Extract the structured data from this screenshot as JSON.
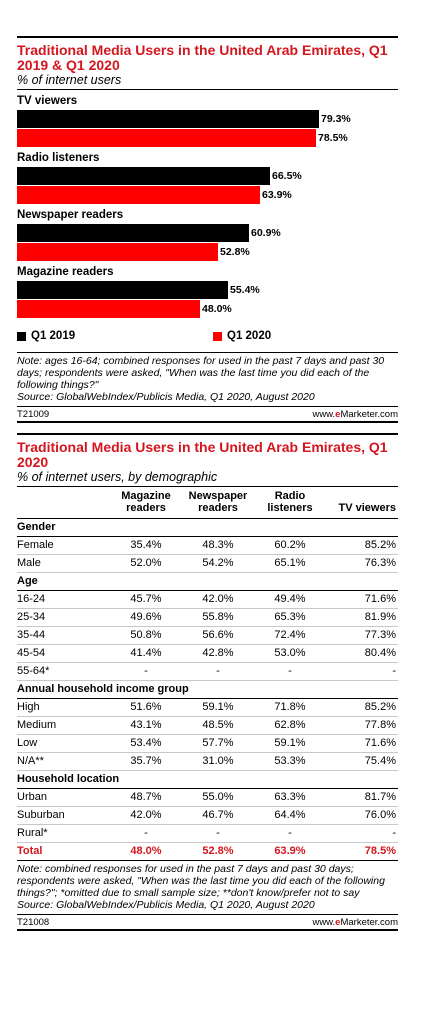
{
  "chart_data": [
    {
      "type": "bar",
      "orientation": "horizontal",
      "title": "Traditional Media Users in the United Arab Emirates, Q1 2019 & Q1 2020",
      "subtitle": "% of internet users",
      "categories": [
        "TV viewers",
        "Radio listeners",
        "Newspaper readers",
        "Magazine readers"
      ],
      "series": [
        {
          "name": "Q1 2019",
          "color": "#000000",
          "values": [
            79.3,
            66.5,
            60.9,
            55.4
          ],
          "labels": [
            "79.3%",
            "66.5%",
            "60.9%",
            "55.4%"
          ]
        },
        {
          "name": "Q1 2020",
          "color": "#ff0000",
          "values": [
            78.5,
            63.9,
            52.8,
            48.0
          ],
          "labels": [
            "78.5%",
            "63.9%",
            "52.8%",
            "48.0%"
          ]
        }
      ],
      "xlim": [
        0,
        100
      ],
      "legend": "bottom",
      "note": "Note: ages 16-64; combined responses for used in the past 7 days and past 30 days; respondents were asked, \"When was the last time you did each of the following things?\"",
      "source": "Source: GlobalWebIndex/Publicis Media, Q1 2020, August 2020",
      "code": "T21009"
    },
    {
      "type": "table",
      "title": "Traditional Media Users in the United Arab Emirates, Q1 2020",
      "subtitle": "% of internet users, by demographic",
      "columns": [
        "Magazine readers",
        "Newspaper readers",
        "Radio listeners",
        "TV viewers"
      ],
      "sections": [
        {
          "name": "Gender",
          "rows": [
            {
              "label": "Female",
              "values": [
                "35.4%",
                "48.3%",
                "60.2%",
                "85.2%"
              ]
            },
            {
              "label": "Male",
              "values": [
                "52.0%",
                "54.2%",
                "65.1%",
                "76.3%"
              ]
            }
          ]
        },
        {
          "name": "Age",
          "rows": [
            {
              "label": "16-24",
              "values": [
                "45.7%",
                "42.0%",
                "49.4%",
                "71.6%"
              ]
            },
            {
              "label": "25-34",
              "values": [
                "49.6%",
                "55.8%",
                "65.3%",
                "81.9%"
              ]
            },
            {
              "label": "35-44",
              "values": [
                "50.8%",
                "56.6%",
                "72.4%",
                "77.3%"
              ]
            },
            {
              "label": "45-54",
              "values": [
                "41.4%",
                "42.8%",
                "53.0%",
                "80.4%"
              ]
            },
            {
              "label": "55-64*",
              "values": [
                "-",
                "-",
                "-",
                "-"
              ]
            }
          ]
        },
        {
          "name": "Annual household income group",
          "rows": [
            {
              "label": "High",
              "values": [
                "51.6%",
                "59.1%",
                "71.8%",
                "85.2%"
              ]
            },
            {
              "label": "Medium",
              "values": [
                "43.1%",
                "48.5%",
                "62.8%",
                "77.8%"
              ]
            },
            {
              "label": "Low",
              "values": [
                "53.4%",
                "57.7%",
                "59.1%",
                "71.6%"
              ]
            },
            {
              "label": "N/A**",
              "values": [
                "35.7%",
                "31.0%",
                "53.3%",
                "75.4%"
              ]
            }
          ]
        },
        {
          "name": "Household location",
          "rows": [
            {
              "label": "Urban",
              "values": [
                "48.7%",
                "55.0%",
                "63.3%",
                "81.7%"
              ]
            },
            {
              "label": "Suburban",
              "values": [
                "42.0%",
                "46.7%",
                "64.4%",
                "76.0%"
              ]
            },
            {
              "label": "Rural*",
              "values": [
                "-",
                "-",
                "-",
                "-"
              ]
            }
          ]
        }
      ],
      "total": {
        "label": "Total",
        "values": [
          "48.0%",
          "52.8%",
          "63.9%",
          "78.5%"
        ]
      },
      "note": "Note: combined responses for used in the past 7 days and past 30 days; respondents were asked, \"When was the last time you did each of the following things?\"; *omitted due to small sample size; **don't know/prefer not to say",
      "source": "Source: GlobalWebIndex/Publicis Media, Q1 2020, August 2020",
      "code": "T21008"
    }
  ],
  "footer": {
    "site_prefix": "www.",
    "site_brand": "e",
    "site_rest": "Marketer.com"
  },
  "colors": {
    "accent": "#d4161f",
    "q1_2019": "#000000",
    "q1_2020": "#ff0000"
  }
}
